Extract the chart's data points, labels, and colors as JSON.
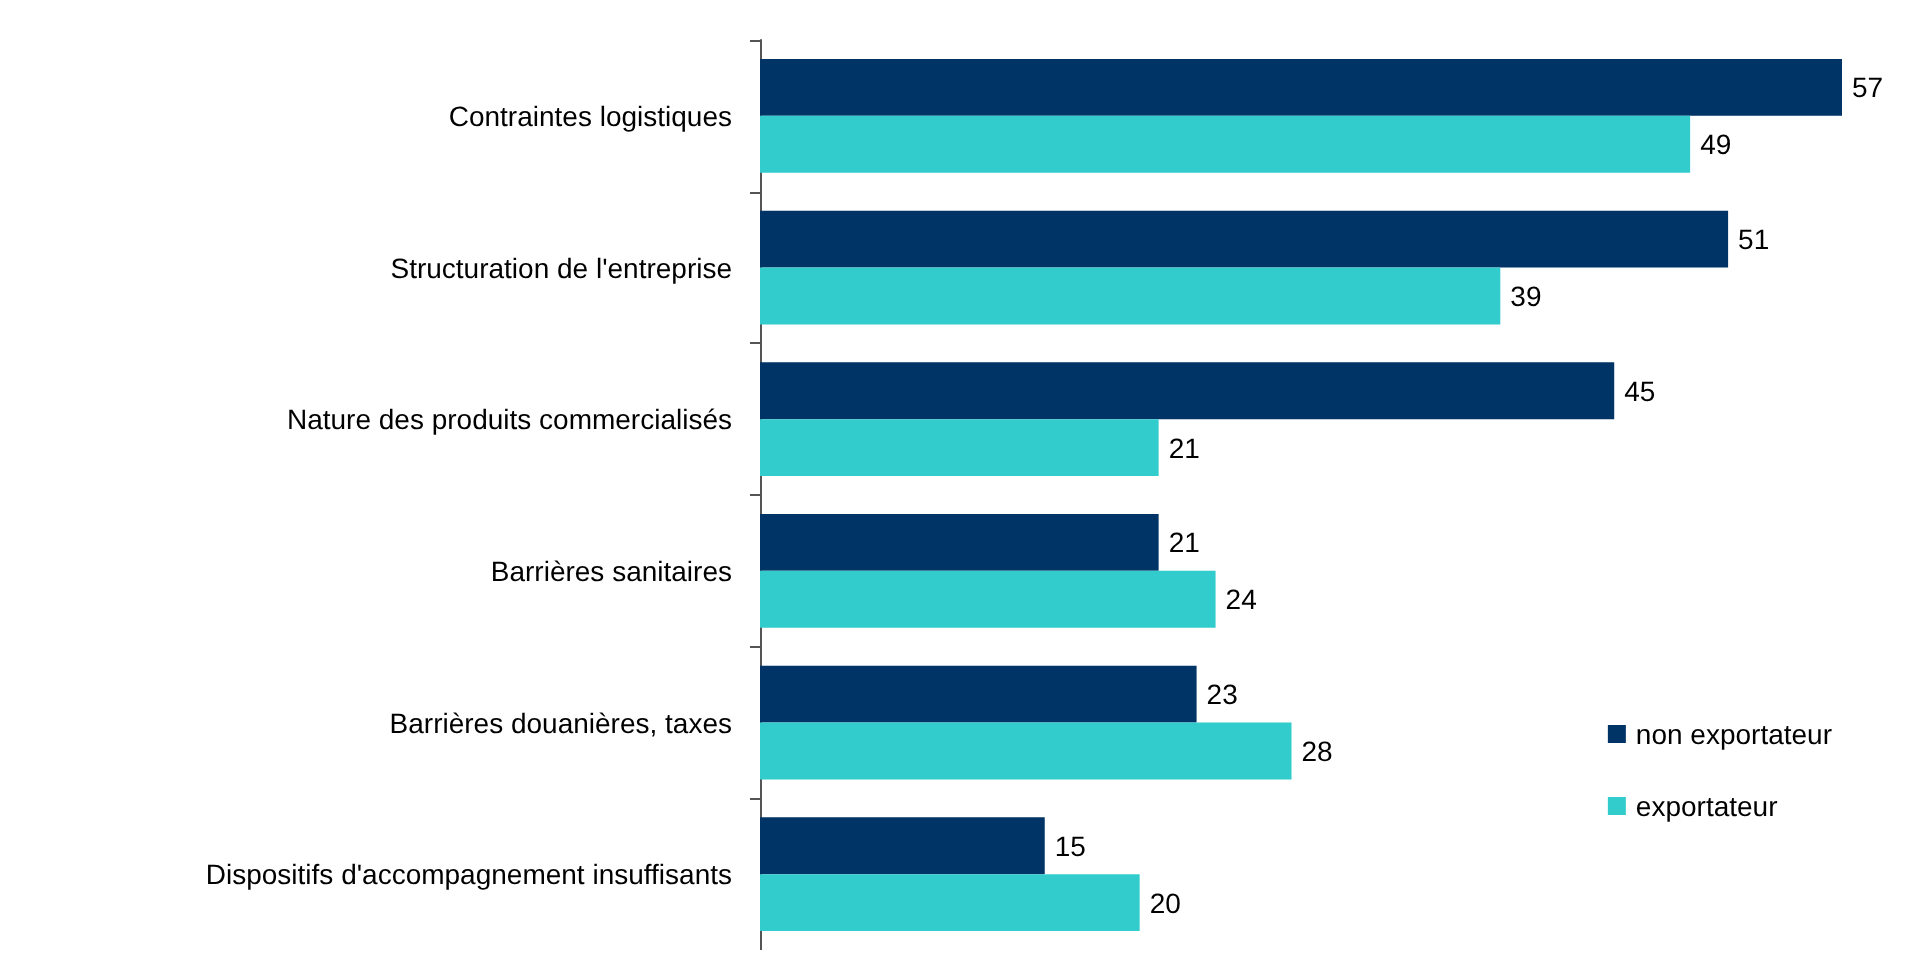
{
  "chart_data": {
    "type": "bar",
    "orientation": "horizontal",
    "categories": [
      "Contraintes logistiques",
      "Structuration de l'entreprise",
      "Nature des produits commercialisés",
      "Barrières sanitaires",
      "Barrières douanières, taxes",
      "Dispositifs d'accompagnement insuffisants"
    ],
    "series": [
      {
        "name": "non exportateur",
        "color": "#003366",
        "values": [
          57,
          51,
          45,
          21,
          23,
          15
        ]
      },
      {
        "name": "exportateur",
        "color": "#33cccc",
        "values": [
          49,
          39,
          21,
          24,
          28,
          20
        ]
      }
    ],
    "data_labels": true,
    "legend": "bottom right",
    "tick_labels": "y"
  }
}
